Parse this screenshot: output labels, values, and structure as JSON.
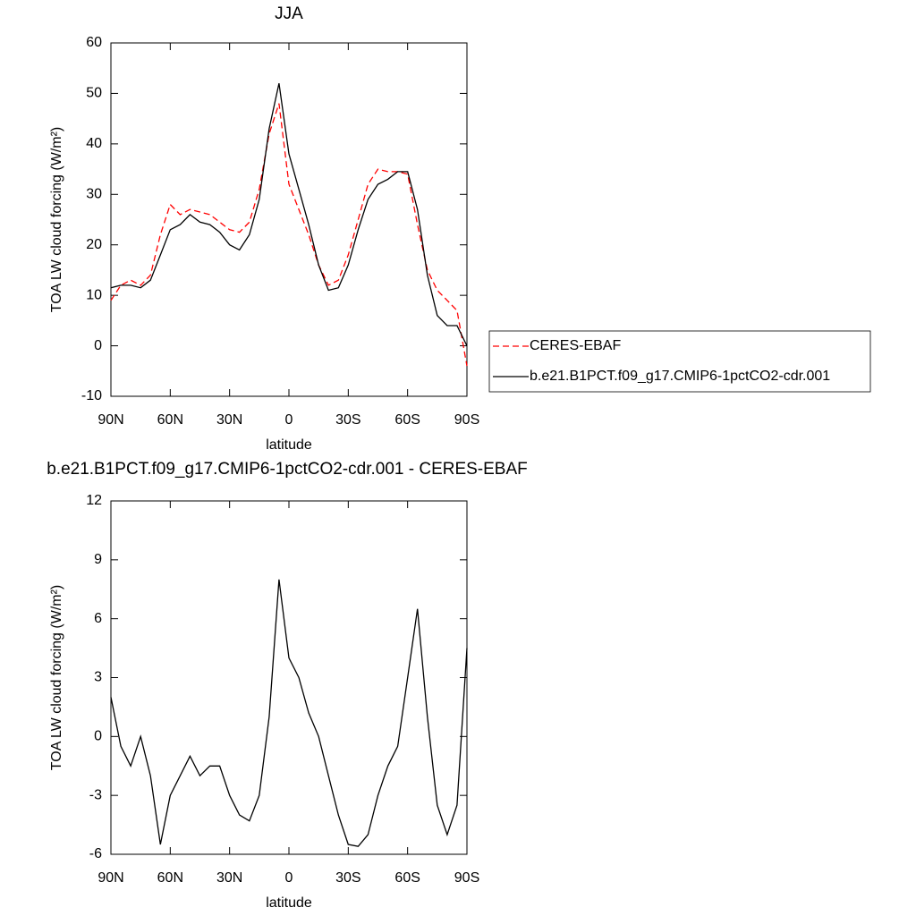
{
  "chart_data": [
    {
      "type": "line",
      "title": "JJA",
      "xlabel": "latitude",
      "ylabel": "TOA LW cloud forcing (W/m²)",
      "x": [
        90,
        85,
        80,
        75,
        70,
        65,
        60,
        55,
        50,
        45,
        40,
        35,
        30,
        25,
        20,
        15,
        10,
        5,
        0,
        -5,
        -10,
        -15,
        -20,
        -25,
        -30,
        -35,
        -40,
        -45,
        -50,
        -55,
        -60,
        -65,
        -70,
        -75,
        -80,
        -85,
        -90
      ],
      "xlim": [
        90,
        -90
      ],
      "xticks": [
        {
          "value": 90,
          "label": "90N"
        },
        {
          "value": 60,
          "label": "60N"
        },
        {
          "value": 30,
          "label": "30N"
        },
        0,
        {
          "value": -30,
          "label": "30S"
        },
        {
          "value": -60,
          "label": "60S"
        },
        {
          "value": -90,
          "label": "90S"
        }
      ],
      "ylim": [
        -10,
        60
      ],
      "yticks": [
        -10,
        0,
        10,
        20,
        30,
        40,
        50,
        60
      ],
      "legend": "right",
      "series": [
        {
          "name": "CERES-EBAF",
          "color": "#ff0000",
          "line_style": "dashed",
          "values": [
            9,
            12,
            13,
            12,
            14,
            22,
            28,
            26,
            27,
            26.5,
            26,
            24.5,
            23,
            22.5,
            24.5,
            31,
            42,
            48,
            32,
            27,
            22,
            16,
            12,
            13,
            18,
            25,
            32,
            35,
            34.5,
            34.5,
            34,
            24,
            15,
            11,
            9,
            7,
            -4
          ]
        },
        {
          "name": "b.e21.B1PCT.f09_g17.CMIP6-1pctCO2-cdr.001",
          "color": "#000000",
          "line_style": "solid",
          "values": [
            11.5,
            12,
            12,
            11.5,
            13,
            18,
            23,
            24,
            26,
            24.5,
            24,
            22.5,
            20,
            19,
            22,
            29,
            43,
            52,
            38,
            31,
            24,
            16,
            11,
            11.5,
            16,
            23,
            29,
            32,
            33,
            34.5,
            34.5,
            27,
            14,
            6,
            4,
            4,
            0
          ]
        }
      ]
    },
    {
      "type": "line",
      "title": "b.e21.B1PCT.f09_g17.CMIP6-1pctCO2-cdr.001 - CERES-EBAF",
      "xlabel": "latitude",
      "ylabel": "TOA LW cloud forcing (W/m²)",
      "x": [
        90,
        85,
        80,
        75,
        70,
        65,
        60,
        55,
        50,
        45,
        40,
        35,
        30,
        25,
        20,
        15,
        10,
        5,
        0,
        -5,
        -10,
        -15,
        -20,
        -25,
        -30,
        -35,
        -40,
        -45,
        -50,
        -55,
        -60,
        -65,
        -70,
        -75,
        -80,
        -85,
        -90
      ],
      "xlim": [
        90,
        -90
      ],
      "xticks": [
        {
          "value": 90,
          "label": "90N"
        },
        {
          "value": 60,
          "label": "60N"
        },
        {
          "value": 30,
          "label": "30N"
        },
        0,
        {
          "value": -30,
          "label": "30S"
        },
        {
          "value": -60,
          "label": "60S"
        },
        {
          "value": -90,
          "label": "90S"
        }
      ],
      "ylim": [
        -6,
        12
      ],
      "yticks": [
        -6,
        -3,
        0,
        3,
        6,
        9,
        12
      ],
      "series": [
        {
          "color": "#000000",
          "line_style": "solid",
          "values": [
            2,
            -0.5,
            -1.5,
            0,
            -2,
            -5.5,
            -3,
            -2,
            -1,
            -2,
            -1.5,
            -1.5,
            -3,
            -4,
            -4.3,
            -3,
            1,
            8,
            4,
            3,
            1.2,
            0,
            -2,
            -4,
            -5.5,
            -5.6,
            -5,
            -3,
            -1.5,
            -0.5,
            3,
            6.5,
            1,
            -3.5,
            -5,
            -3.5,
            4.5
          ]
        }
      ]
    }
  ]
}
